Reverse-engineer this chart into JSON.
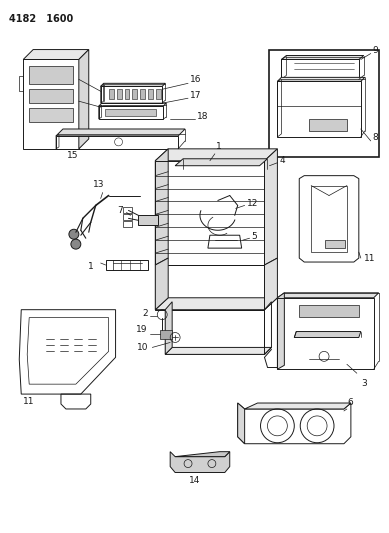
{
  "title_code": "4182  1600",
  "bg_color": "#ffffff",
  "line_color": "#1a1a1a",
  "fig_width": 3.89,
  "fig_height": 5.33,
  "dpi": 100
}
